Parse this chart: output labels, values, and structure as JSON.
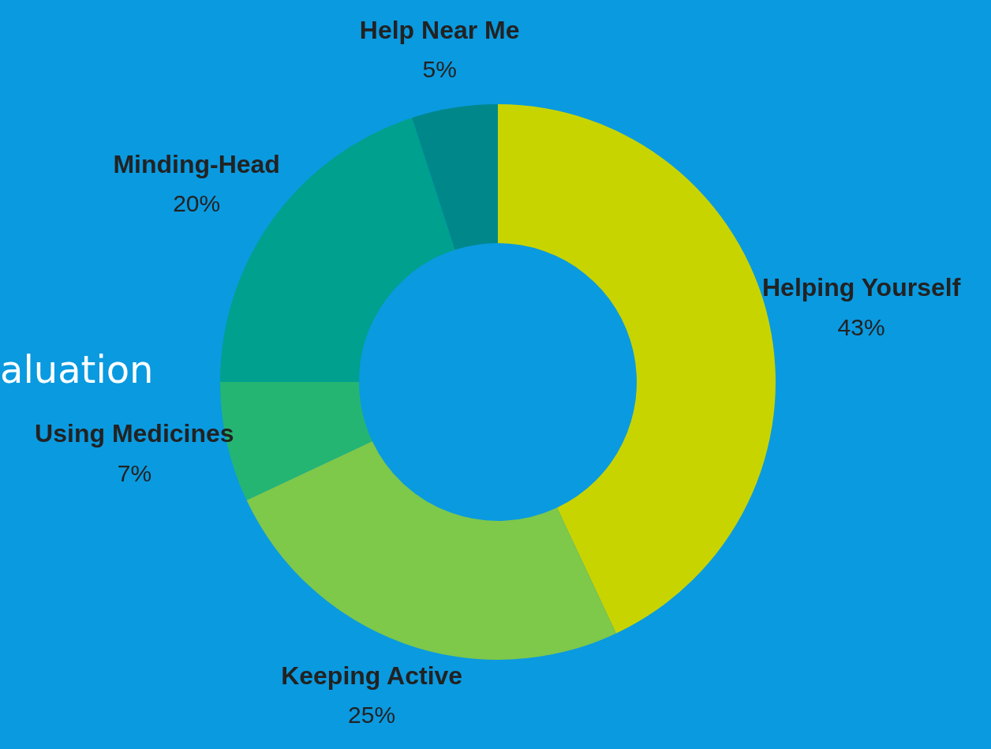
{
  "chart_data": {
    "type": "donut",
    "categories": [
      "Helping Yourself",
      "Keeping Active",
      "Using Medicines",
      "Minding-Head",
      "Help Near Me"
    ],
    "values": [
      43,
      25,
      7,
      20,
      5
    ],
    "value_labels": [
      "43%",
      "25%",
      "7%",
      "20%",
      "5%"
    ],
    "colors": [
      "#c8d400",
      "#7ec84a",
      "#25b573",
      "#00a08e",
      "#00878a"
    ],
    "legend": false,
    "annotations": [
      "aluation"
    ]
  }
}
